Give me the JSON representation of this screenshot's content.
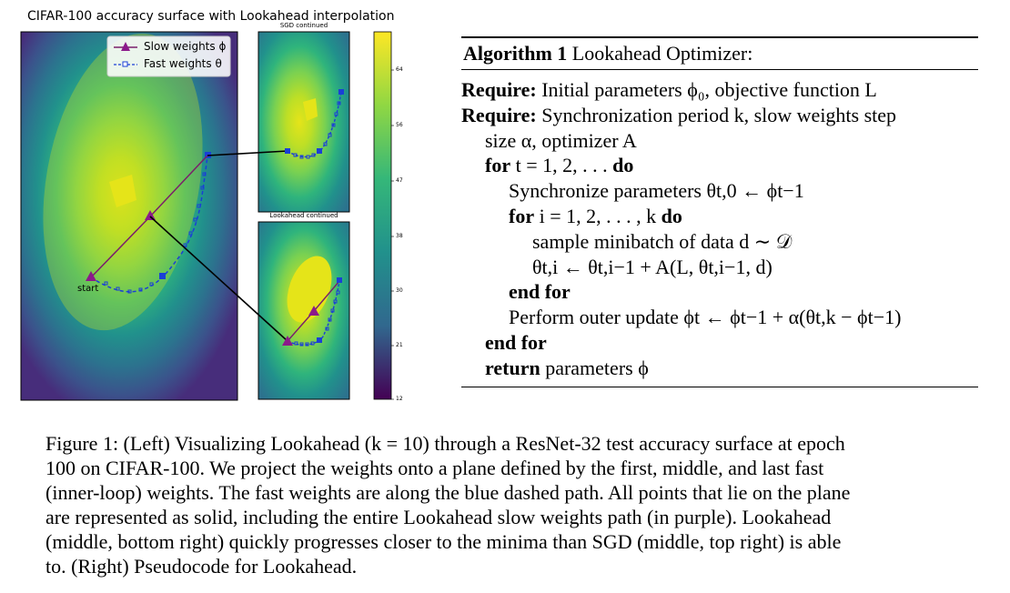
{
  "figure": {
    "title": "CIFAR-100 accuracy surface with Lookahead interpolation",
    "panel_top_label": "SGD continued",
    "panel_bottom_label": "Lookahead continued",
    "legend": {
      "slow": "Slow weights ϕ",
      "fast": "Fast weights θ"
    },
    "start_label": "start",
    "colorbar_ticks": [
      "64",
      "56",
      "47",
      "38",
      "30",
      "21",
      "12"
    ],
    "colors": {
      "slow_path": "#7a1f6b",
      "slow_marker": "#8b1a8a",
      "fast_path": "#1a3fd6",
      "connector": "#000000"
    }
  },
  "algorithm": {
    "header_bold": "Algorithm 1",
    "header_text": "Lookahead Optimizer:",
    "require1_kw": "Require:",
    "require1_text": "Initial parameters ϕ₀, objective function L",
    "require2_kw": "Require:",
    "require2_text": "Synchronization period k, slow weights step",
    "require2_cont": "size α, optimizer A",
    "for_outer_kw": "for",
    "for_outer_text": "t = 1, 2, . . .",
    "do_kw": "do",
    "sync_text": "Synchronize parameters θt,0 ← ϕt−1",
    "for_inner_kw": "for",
    "for_inner_text": "i = 1, 2, . . . , k",
    "do_inner_kw": "do",
    "sample_text": "sample minibatch of data d ∼ 𝒟",
    "update_text": "θt,i ← θt,i−1 + A(L, θt,i−1, d)",
    "end_for_inner": "end for",
    "outer_update_text": "Perform outer update ϕt ← ϕt−1 + α(θt,k − ϕt−1)",
    "end_for_outer": "end for",
    "return_kw": "return",
    "return_text": "parameters ϕ"
  },
  "caption": {
    "lines": [
      "Figure 1: (Left) Visualizing Lookahead (k = 10) through a ResNet-32 test accuracy surface at epoch",
      "100 on CIFAR-100. We project the weights onto a plane defined by the first, middle, and last fast",
      "(inner-loop) weights. The fast weights are along the blue dashed path. All points that lie on the plane",
      "are represented as solid, including the entire Lookahead slow weights path (in purple). Lookahead",
      "(middle, bottom right) quickly progresses closer to the minima than SGD (middle, top right) is able",
      "to. (Right) Pseudocode for Lookahead."
    ]
  }
}
